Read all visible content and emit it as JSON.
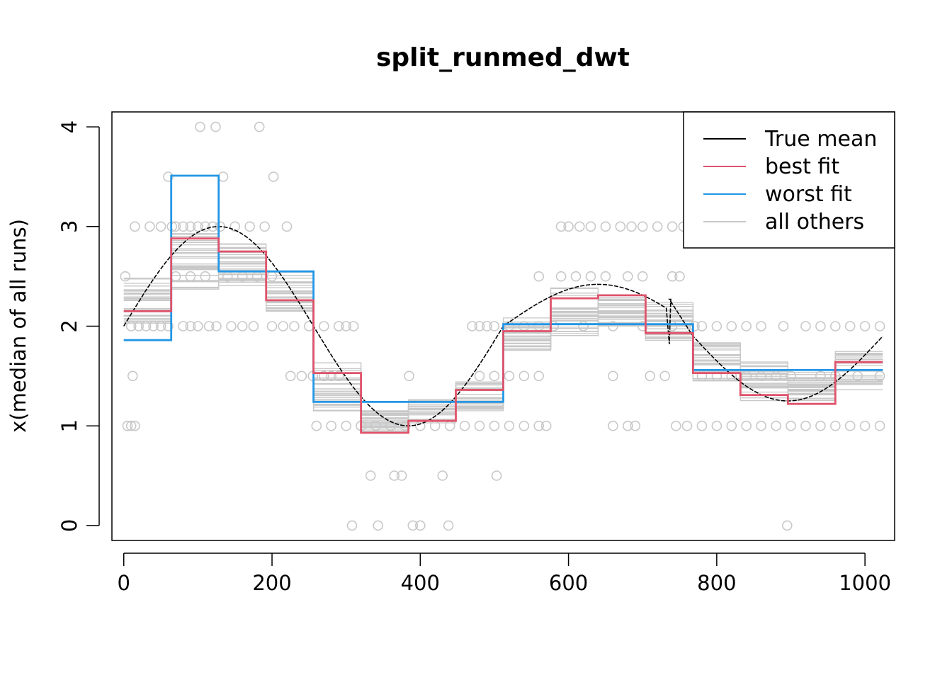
{
  "chart_data": {
    "type": "line",
    "title": "split_runmed_dwt",
    "xlabel": "",
    "ylabel": "x(median of all runs)",
    "xlim": [
      -16,
      1040
    ],
    "ylim": [
      -0.15,
      4.15
    ],
    "x_ticks": [
      0,
      200,
      400,
      600,
      800,
      1000
    ],
    "y_ticks": [
      0,
      1,
      2,
      3,
      4
    ],
    "legend_position": "top-right",
    "colors": {
      "true_mean": "#000000",
      "best_fit": "#DF536B",
      "worst_fit": "#2297E6",
      "all_others": "#C8C8C8",
      "points": "#C8C8C8"
    },
    "legend": [
      {
        "label": "True mean",
        "color": "#000000"
      },
      {
        "label": "best fit",
        "color": "#DF536B"
      },
      {
        "label": "worst fit",
        "color": "#2297E6"
      },
      {
        "label": "all others",
        "color": "#C8C8C8"
      }
    ],
    "segment_edges": [
      0,
      64,
      128,
      192,
      256,
      320,
      384,
      448,
      512,
      576,
      640,
      704,
      768,
      832,
      896,
      960,
      1024
    ],
    "series": [
      {
        "name": "best fit",
        "values": [
          2.15,
          2.88,
          2.75,
          2.26,
          1.53,
          0.93,
          1.05,
          1.36,
          1.95,
          2.28,
          2.31,
          1.93,
          1.53,
          1.31,
          1.22,
          1.64
        ]
      },
      {
        "name": "worst fit",
        "values": [
          1.86,
          3.51,
          2.55,
          2.55,
          1.24,
          1.24,
          1.24,
          1.24,
          2.02,
          2.02,
          2.02,
          2.02,
          1.56,
          1.56,
          1.56,
          1.56
        ]
      }
    ],
    "others_center": [
      2.3,
      2.65,
      2.65,
      2.35,
      1.4,
      1.05,
      1.15,
      1.3,
      1.95,
      2.15,
      2.15,
      2.05,
      1.65,
      1.45,
      1.4,
      1.55
    ],
    "others_spread": [
      0.3,
      0.28,
      0.25,
      0.2,
      0.25,
      0.12,
      0.12,
      0.15,
      0.2,
      0.25,
      0.15,
      0.2,
      0.2,
      0.2,
      0.15,
      0.2
    ],
    "others_count": 30,
    "true_mean": {
      "description": "sinusoid with small discontinuity near x=740"
    },
    "points_note": "observed values (many overlapping, quantized to 0.5)",
    "points": [
      [
        5,
        1
      ],
      [
        10,
        1
      ],
      [
        15,
        1
      ],
      [
        12,
        1.5
      ],
      [
        2,
        2.5
      ],
      [
        15,
        3
      ],
      [
        35,
        3
      ],
      [
        50,
        3
      ],
      [
        10,
        2
      ],
      [
        20,
        2
      ],
      [
        30,
        2
      ],
      [
        40,
        2
      ],
      [
        50,
        2
      ],
      [
        60,
        2
      ],
      [
        60,
        3.5
      ],
      [
        65,
        3
      ],
      [
        70,
        3
      ],
      [
        80,
        3
      ],
      [
        90,
        3
      ],
      [
        100,
        3
      ],
      [
        110,
        3
      ],
      [
        120,
        3
      ],
      [
        70,
        2.5
      ],
      [
        90,
        2.5
      ],
      [
        110,
        2.5
      ],
      [
        80,
        2
      ],
      [
        90,
        2
      ],
      [
        100,
        2
      ],
      [
        103,
        4
      ],
      [
        124,
        4
      ],
      [
        183,
        4
      ],
      [
        134,
        3.5
      ],
      [
        202,
        3.5
      ],
      [
        130,
        3
      ],
      [
        150,
        3
      ],
      [
        170,
        3
      ],
      [
        190,
        3
      ],
      [
        220,
        3
      ],
      [
        140,
        2.5
      ],
      [
        160,
        2.5
      ],
      [
        180,
        2.5
      ],
      [
        200,
        2.5
      ],
      [
        115,
        2
      ],
      [
        125,
        2
      ],
      [
        145,
        2
      ],
      [
        160,
        2
      ],
      [
        175,
        2
      ],
      [
        200,
        2
      ],
      [
        215,
        2
      ],
      [
        230,
        2
      ],
      [
        250,
        2
      ],
      [
        270,
        2
      ],
      [
        290,
        2
      ],
      [
        300,
        2
      ],
      [
        310,
        2
      ],
      [
        225,
        1.5
      ],
      [
        240,
        1.5
      ],
      [
        255,
        1.5
      ],
      [
        270,
        1.5
      ],
      [
        280,
        1.5
      ],
      [
        290,
        1.5
      ],
      [
        260,
        1
      ],
      [
        280,
        1
      ],
      [
        300,
        1
      ],
      [
        320,
        1
      ],
      [
        340,
        1
      ],
      [
        360,
        1
      ],
      [
        380,
        1
      ],
      [
        333,
        0.5
      ],
      [
        365,
        0.5
      ],
      [
        375,
        0.5
      ],
      [
        430,
        0.5
      ],
      [
        503,
        0.5
      ],
      [
        308,
        0
      ],
      [
        343,
        0
      ],
      [
        390,
        0
      ],
      [
        400,
        0
      ],
      [
        438,
        0
      ],
      [
        385,
        1.5
      ],
      [
        400,
        1
      ],
      [
        420,
        1
      ],
      [
        440,
        1
      ],
      [
        460,
        1
      ],
      [
        480,
        1
      ],
      [
        500,
        1
      ],
      [
        520,
        1
      ],
      [
        540,
        1
      ],
      [
        560,
        1
      ],
      [
        570,
        1
      ],
      [
        470,
        2
      ],
      [
        480,
        2
      ],
      [
        490,
        2
      ],
      [
        500,
        2
      ],
      [
        480,
        1.5
      ],
      [
        500,
        1.5
      ],
      [
        520,
        1.5
      ],
      [
        540,
        1.5
      ],
      [
        560,
        1.5
      ],
      [
        560,
        2.5
      ],
      [
        590,
        2.5
      ],
      [
        610,
        2.5
      ],
      [
        630,
        2.5
      ],
      [
        650,
        2.5
      ],
      [
        680,
        2.5
      ],
      [
        700,
        2.5
      ],
      [
        590,
        3
      ],
      [
        600,
        3
      ],
      [
        615,
        3
      ],
      [
        630,
        3
      ],
      [
        650,
        3
      ],
      [
        670,
        3
      ],
      [
        685,
        3
      ],
      [
        700,
        3
      ],
      [
        720,
        3
      ],
      [
        740,
        3
      ],
      [
        755,
        3
      ],
      [
        520,
        2
      ],
      [
        540,
        2
      ],
      [
        560,
        2
      ],
      [
        580,
        2
      ],
      [
        620,
        2
      ],
      [
        660,
        2
      ],
      [
        700,
        2
      ],
      [
        740,
        2
      ],
      [
        770,
        2
      ],
      [
        780,
        2
      ],
      [
        800,
        2
      ],
      [
        820,
        2
      ],
      [
        660,
        1.5
      ],
      [
        710,
        1.5
      ],
      [
        730,
        1.5
      ],
      [
        740,
        2.5
      ],
      [
        750,
        2.5
      ],
      [
        660,
        1
      ],
      [
        680,
        1
      ],
      [
        690,
        1
      ],
      [
        745,
        1
      ],
      [
        760,
        1
      ],
      [
        780,
        1
      ],
      [
        800,
        1
      ],
      [
        820,
        1
      ],
      [
        780,
        1.5
      ],
      [
        800,
        1.5
      ],
      [
        820,
        1.5
      ],
      [
        840,
        1.5
      ],
      [
        860,
        1.5
      ],
      [
        880,
        1.5
      ],
      [
        900,
        1.5
      ],
      [
        840,
        1
      ],
      [
        860,
        1
      ],
      [
        880,
        1
      ],
      [
        900,
        1
      ],
      [
        920,
        1
      ],
      [
        940,
        1
      ],
      [
        960,
        1
      ],
      [
        980,
        1
      ],
      [
        1000,
        1
      ],
      [
        1020,
        1
      ],
      [
        840,
        2
      ],
      [
        860,
        2
      ],
      [
        890,
        2
      ],
      [
        920,
        2
      ],
      [
        940,
        2
      ],
      [
        960,
        2
      ],
      [
        980,
        2
      ],
      [
        1000,
        2
      ],
      [
        1020,
        2
      ],
      [
        940,
        1.5
      ],
      [
        960,
        1.5
      ],
      [
        990,
        1.5
      ],
      [
        1020,
        1.5
      ],
      [
        895,
        0
      ]
    ]
  }
}
